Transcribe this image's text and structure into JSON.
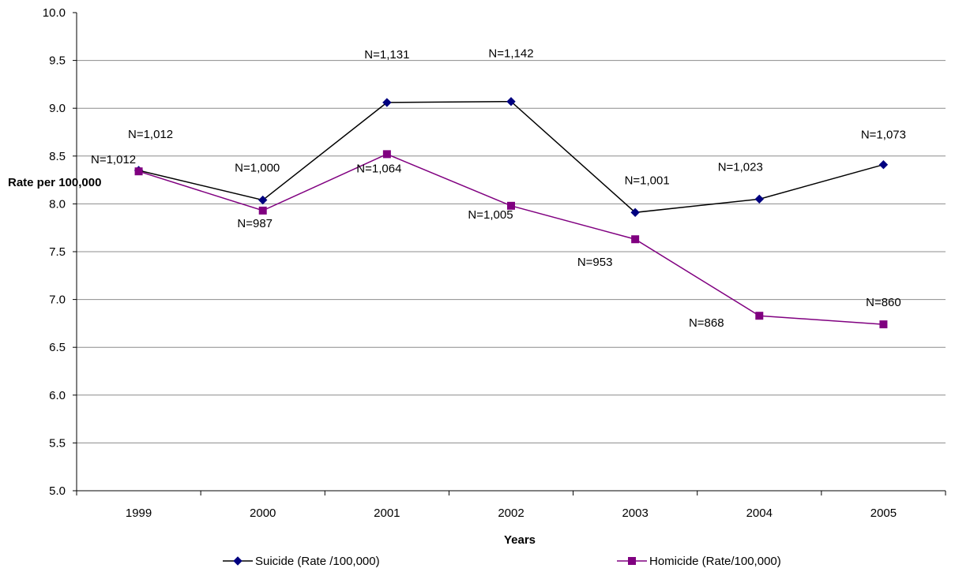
{
  "chart_data": {
    "type": "line",
    "title": "",
    "xlabel": "Years",
    "ylabel": "Rate per 100,000",
    "categories": [
      "1999",
      "2000",
      "2001",
      "2002",
      "2003",
      "2004",
      "2005"
    ],
    "ylim": [
      5.0,
      10.0
    ],
    "yticks": [
      "5.0",
      "5.5",
      "6.0",
      "6.5",
      "7.0",
      "7.5",
      "8.0",
      "8.5",
      "9.0",
      "9.5",
      "10.0"
    ],
    "grid": true,
    "legend": "bottom",
    "series": [
      {
        "name": "Suicide (Rate /100,000)",
        "color": "#000080",
        "line_color": "#000000",
        "marker": "diamond",
        "values": [
          8.35,
          8.04,
          9.06,
          9.07,
          7.91,
          8.05,
          8.41
        ],
        "labels": [
          "N=1,012",
          "N=1,000",
          "N=1,131",
          "N=1,142",
          "N=1,001",
          "N=1,023",
          "N=1,073"
        ]
      },
      {
        "name": "Homicide (Rate/100,000)",
        "color": "#800080",
        "line_color": "#800080",
        "marker": "square",
        "values": [
          8.34,
          7.93,
          8.52,
          7.98,
          7.63,
          6.83,
          6.74
        ],
        "labels": [
          "N=1,012",
          "N=987",
          "N=1,064",
          "N=1,005",
          "N=953",
          "N=868",
          "N=860"
        ]
      }
    ]
  }
}
